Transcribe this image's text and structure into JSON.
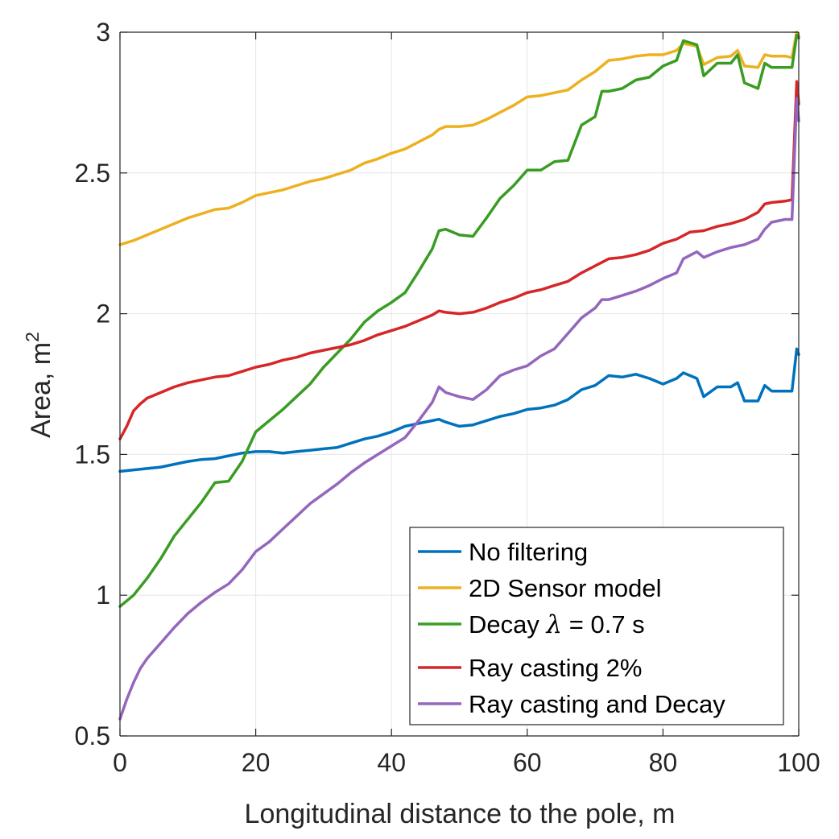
{
  "chart_data": {
    "type": "line",
    "xlabel": "Longitudinal distance to the pole, m",
    "ylabel": "Area, m",
    "ylabel_superscript": "2",
    "xlim": [
      0,
      100
    ],
    "ylim": [
      0.5,
      3
    ],
    "xticks": [
      0,
      20,
      40,
      60,
      80,
      100
    ],
    "yticks": [
      0.5,
      1,
      1.5,
      2,
      2.5,
      3
    ],
    "xtick_labels": [
      "0",
      "20",
      "40",
      "60",
      "80",
      "100"
    ],
    "ytick_labels": [
      "0.5",
      "1",
      "1.5",
      "2",
      "2.5",
      "3"
    ],
    "grid": true,
    "legend_position": "bottom-right",
    "series": [
      {
        "name": "No filtering",
        "color": "#0072BD",
        "x": [
          0,
          2,
          4,
          6,
          8,
          10,
          12,
          14,
          16,
          18,
          20,
          22,
          24,
          26,
          28,
          30,
          32,
          34,
          36,
          38,
          40,
          42,
          44,
          46,
          47,
          48,
          50,
          52,
          54,
          56,
          58,
          60,
          62,
          64,
          66,
          68,
          70,
          72,
          74,
          76,
          78,
          80,
          82,
          83,
          85,
          86,
          88,
          90,
          91,
          92,
          94,
          95,
          96,
          98,
          99,
          99.7,
          100
        ],
        "y": [
          1.44,
          1.445,
          1.45,
          1.455,
          1.465,
          1.475,
          1.482,
          1.485,
          1.495,
          1.505,
          1.51,
          1.51,
          1.505,
          1.51,
          1.515,
          1.52,
          1.525,
          1.54,
          1.555,
          1.565,
          1.58,
          1.6,
          1.61,
          1.62,
          1.625,
          1.615,
          1.6,
          1.605,
          1.62,
          1.635,
          1.645,
          1.66,
          1.665,
          1.675,
          1.695,
          1.73,
          1.745,
          1.78,
          1.775,
          1.785,
          1.77,
          1.75,
          1.77,
          1.79,
          1.77,
          1.705,
          1.74,
          1.74,
          1.755,
          1.69,
          1.69,
          1.745,
          1.725,
          1.725,
          1.725,
          1.875,
          1.855
        ]
      },
      {
        "name": "2D Sensor model",
        "color": "#EDB120",
        "x": [
          0,
          2,
          4,
          6,
          8,
          10,
          12,
          14,
          16,
          18,
          20,
          22,
          24,
          26,
          28,
          30,
          32,
          34,
          36,
          38,
          40,
          42,
          44,
          46,
          47,
          48,
          50,
          52,
          54,
          56,
          58,
          60,
          62,
          64,
          66,
          68,
          70,
          72,
          74,
          76,
          78,
          80,
          82,
          83,
          84,
          85,
          86,
          88,
          90,
          91,
          92,
          94,
          95,
          96,
          98,
          99,
          99.7,
          100
        ],
        "y": [
          2.245,
          2.26,
          2.28,
          2.3,
          2.32,
          2.34,
          2.355,
          2.37,
          2.375,
          2.395,
          2.42,
          2.43,
          2.44,
          2.455,
          2.47,
          2.48,
          2.495,
          2.51,
          2.535,
          2.55,
          2.57,
          2.585,
          2.61,
          2.635,
          2.655,
          2.665,
          2.665,
          2.67,
          2.69,
          2.715,
          2.74,
          2.77,
          2.775,
          2.785,
          2.795,
          2.83,
          2.86,
          2.9,
          2.905,
          2.915,
          2.92,
          2.92,
          2.935,
          2.96,
          2.955,
          2.95,
          2.885,
          2.91,
          2.915,
          2.935,
          2.88,
          2.875,
          2.92,
          2.915,
          2.915,
          2.91,
          3.0,
          2.985
        ]
      },
      {
        "name": "Decay λ = 0.7 s",
        "name_prefix": "Decay ",
        "name_symbol": "λ",
        "name_suffix": " = 0.7 s",
        "color": "#3A9D23",
        "x": [
          0,
          2,
          4,
          6,
          8,
          10,
          12,
          14,
          16,
          18,
          20,
          22,
          24,
          26,
          28,
          30,
          32,
          34,
          36,
          38,
          40,
          42,
          44,
          46,
          47,
          48,
          50,
          52,
          54,
          56,
          58,
          60,
          62,
          64,
          66,
          68,
          70,
          71,
          72,
          74,
          76,
          78,
          80,
          82,
          83,
          85,
          86,
          88,
          90,
          91,
          92,
          94,
          95,
          96,
          98,
          99,
          99.7,
          100
        ],
        "y": [
          0.96,
          1.0,
          1.06,
          1.13,
          1.21,
          1.27,
          1.33,
          1.4,
          1.405,
          1.475,
          1.58,
          1.62,
          1.66,
          1.705,
          1.75,
          1.81,
          1.86,
          1.91,
          1.97,
          2.01,
          2.04,
          2.075,
          2.15,
          2.23,
          2.295,
          2.3,
          2.28,
          2.275,
          2.34,
          2.41,
          2.455,
          2.51,
          2.51,
          2.54,
          2.545,
          2.67,
          2.7,
          2.79,
          2.79,
          2.8,
          2.83,
          2.84,
          2.88,
          2.9,
          2.97,
          2.955,
          2.845,
          2.89,
          2.89,
          2.92,
          2.82,
          2.8,
          2.89,
          2.875,
          2.875,
          2.875,
          2.99,
          2.98
        ]
      },
      {
        "name": "Ray casting 2%",
        "color": "#D62728",
        "x": [
          0,
          1,
          2,
          3,
          4,
          6,
          8,
          10,
          12,
          14,
          16,
          18,
          20,
          22,
          24,
          26,
          28,
          30,
          32,
          34,
          36,
          38,
          40,
          42,
          44,
          46,
          47,
          48,
          50,
          52,
          54,
          56,
          58,
          60,
          62,
          64,
          66,
          68,
          70,
          72,
          74,
          76,
          78,
          80,
          82,
          84,
          86,
          88,
          90,
          92,
          94,
          95,
          96,
          98,
          99,
          99.7,
          100
        ],
        "y": [
          1.555,
          1.6,
          1.655,
          1.68,
          1.7,
          1.72,
          1.74,
          1.755,
          1.765,
          1.775,
          1.78,
          1.795,
          1.81,
          1.82,
          1.835,
          1.845,
          1.86,
          1.87,
          1.88,
          1.89,
          1.905,
          1.925,
          1.94,
          1.955,
          1.975,
          1.995,
          2.01,
          2.005,
          2.0,
          2.005,
          2.02,
          2.04,
          2.055,
          2.075,
          2.085,
          2.1,
          2.115,
          2.145,
          2.17,
          2.195,
          2.2,
          2.21,
          2.225,
          2.25,
          2.265,
          2.29,
          2.295,
          2.31,
          2.32,
          2.335,
          2.36,
          2.39,
          2.395,
          2.4,
          2.405,
          2.825,
          2.745
        ]
      },
      {
        "name": "Ray casting and Decay",
        "color": "#9467BD",
        "x": [
          0,
          1,
          2,
          3,
          4,
          6,
          8,
          10,
          12,
          14,
          16,
          18,
          20,
          22,
          24,
          26,
          28,
          30,
          32,
          34,
          36,
          38,
          40,
          42,
          44,
          46,
          47,
          48,
          50,
          52,
          54,
          56,
          58,
          60,
          62,
          64,
          66,
          68,
          70,
          71,
          72,
          74,
          76,
          78,
          80,
          82,
          83,
          85,
          86,
          88,
          90,
          92,
          94,
          95,
          96,
          98,
          99,
          99.7,
          100
        ],
        "y": [
          0.56,
          0.63,
          0.69,
          0.74,
          0.775,
          0.83,
          0.885,
          0.935,
          0.975,
          1.01,
          1.04,
          1.09,
          1.155,
          1.19,
          1.235,
          1.28,
          1.325,
          1.36,
          1.395,
          1.435,
          1.47,
          1.5,
          1.53,
          1.56,
          1.62,
          1.685,
          1.74,
          1.72,
          1.705,
          1.695,
          1.73,
          1.78,
          1.8,
          1.815,
          1.85,
          1.875,
          1.93,
          1.985,
          2.02,
          2.05,
          2.05,
          2.065,
          2.08,
          2.1,
          2.125,
          2.145,
          2.195,
          2.22,
          2.2,
          2.22,
          2.235,
          2.245,
          2.265,
          2.3,
          2.325,
          2.335,
          2.335,
          2.765,
          2.685
        ]
      }
    ]
  }
}
